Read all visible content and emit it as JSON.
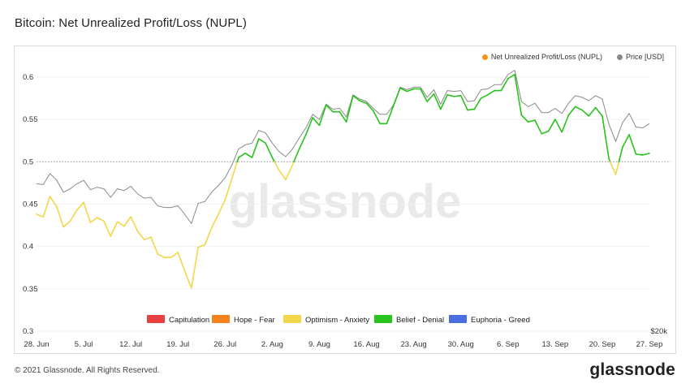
{
  "header": {
    "title": "Bitcoin: Net Unrealized Profit/Loss (NUPL)"
  },
  "footer": {
    "copyright": "© 2021 Glassnode. All Rights Reserved.",
    "brand": "glassnode",
    "watermark": "glassnode"
  },
  "colors": {
    "nupl": "#f7931a",
    "price": "#8a8a8a",
    "capitulation": "#e84040",
    "hope_fear": "#f5821f",
    "optimism_anxiety": "#f2d64b",
    "belief_denial": "#27c21a",
    "euphoria_greed": "#4a6ee0"
  },
  "chart_data": {
    "type": "line",
    "title": "Bitcoin: Net Unrealized Profit/Loss (NUPL)",
    "xlabel": "",
    "ylabel": "",
    "ylim": [
      0.3,
      0.62
    ],
    "y_ticks": [
      "0.3",
      "0.35",
      "0.4",
      "0.45",
      "0.5",
      "0.55",
      "0.6"
    ],
    "x_ticks": [
      "28. Jun",
      "5. Jul",
      "12. Jul",
      "19. Jul",
      "26. Jul",
      "2. Aug",
      "9. Aug",
      "16. Aug",
      "23. Aug",
      "30. Aug",
      "6. Sep",
      "13. Sep",
      "20. Sep",
      "27. Sep"
    ],
    "right_axis_label": "$20k",
    "reference_line": 0.5,
    "x_start": "2021-06-28",
    "legend_top": [
      {
        "label": "Net Unrealized Profit/Loss (NUPL)",
        "color": "#f7931a"
      },
      {
        "label": "Price [USD]",
        "color": "#8a8a8a"
      }
    ],
    "legend_bottom": [
      {
        "label": "Capitulation",
        "color": "#e84040"
      },
      {
        "label": "Hope - Fear",
        "color": "#f5821f"
      },
      {
        "label": "Optimism - Anxiety",
        "color": "#f2d64b"
      },
      {
        "label": "Belief - Denial",
        "color": "#27c21a"
      },
      {
        "label": "Euphoria - Greed",
        "color": "#4a6ee0"
      }
    ],
    "series": [
      {
        "name": "Net Unrealized Profit/Loss (NUPL)",
        "values": [
          0.438,
          0.435,
          0.459,
          0.447,
          0.423,
          0.43,
          0.443,
          0.452,
          0.428,
          0.434,
          0.43,
          0.412,
          0.429,
          0.424,
          0.435,
          0.418,
          0.408,
          0.411,
          0.391,
          0.387,
          0.387,
          0.393,
          0.371,
          0.351,
          0.399,
          0.402,
          0.422,
          0.438,
          0.455,
          0.48,
          0.505,
          0.51,
          0.505,
          0.527,
          0.522,
          0.505,
          0.49,
          0.479,
          0.496,
          0.515,
          0.532,
          0.552,
          0.543,
          0.567,
          0.559,
          0.559,
          0.547,
          0.578,
          0.572,
          0.569,
          0.56,
          0.545,
          0.545,
          0.566,
          0.587,
          0.583,
          0.586,
          0.586,
          0.571,
          0.58,
          0.562,
          0.579,
          0.577,
          0.578,
          0.561,
          0.562,
          0.575,
          0.579,
          0.584,
          0.584,
          0.598,
          0.603,
          0.555,
          0.547,
          0.549,
          0.533,
          0.536,
          0.55,
          0.535,
          0.555,
          0.565,
          0.561,
          0.554,
          0.564,
          0.554,
          0.503,
          0.485,
          0.517,
          0.532,
          0.509,
          0.508,
          0.51
        ]
      },
      {
        "name": "Price [USD]",
        "values": [
          0.474,
          0.473,
          0.486,
          0.478,
          0.464,
          0.468,
          0.474,
          0.478,
          0.467,
          0.47,
          0.468,
          0.458,
          0.468,
          0.466,
          0.471,
          0.462,
          0.457,
          0.458,
          0.448,
          0.446,
          0.446,
          0.448,
          0.438,
          0.427,
          0.451,
          0.453,
          0.464,
          0.472,
          0.481,
          0.496,
          0.515,
          0.52,
          0.522,
          0.537,
          0.534,
          0.522,
          0.512,
          0.506,
          0.515,
          0.528,
          0.54,
          0.556,
          0.55,
          0.568,
          0.562,
          0.563,
          0.553,
          0.579,
          0.574,
          0.571,
          0.563,
          0.556,
          0.556,
          0.567,
          0.588,
          0.585,
          0.588,
          0.588,
          0.576,
          0.585,
          0.568,
          0.584,
          0.583,
          0.584,
          0.571,
          0.572,
          0.585,
          0.586,
          0.591,
          0.591,
          0.603,
          0.608,
          0.571,
          0.565,
          0.569,
          0.558,
          0.558,
          0.563,
          0.557,
          0.569,
          0.578,
          0.576,
          0.572,
          0.578,
          0.574,
          0.544,
          0.524,
          0.546,
          0.557,
          0.541,
          0.54,
          0.545
        ]
      }
    ]
  }
}
